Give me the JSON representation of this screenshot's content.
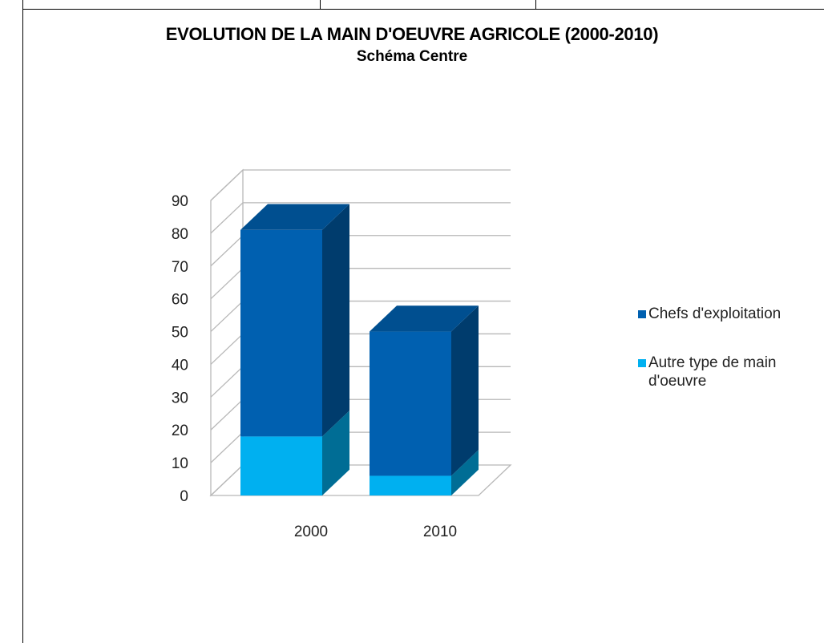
{
  "chart_data": {
    "type": "bar",
    "stacked": true,
    "three_d": true,
    "title": "EVOLUTION DE LA MAIN  D'OEUVRE AGRICOLE (2000-2010)",
    "subtitle": "Schéma Centre",
    "categories": [
      "2000",
      "2010"
    ],
    "series": [
      {
        "name": "Autre type de main d'oeuvre",
        "values": [
          18,
          6
        ],
        "color": "#00b0f0",
        "legend_text": "Autre type de main\nd'oeuvre"
      },
      {
        "name": "Chefs d'exploitation",
        "values": [
          63,
          44
        ],
        "color": "#0060b0",
        "legend_text": "Chefs d'exploitation"
      }
    ],
    "ylim": [
      0,
      90
    ],
    "yticks": [
      "0",
      "10",
      "20",
      "30",
      "40",
      "50",
      "60",
      "70",
      "80",
      "90"
    ],
    "grid": true,
    "legend_position": "right"
  }
}
